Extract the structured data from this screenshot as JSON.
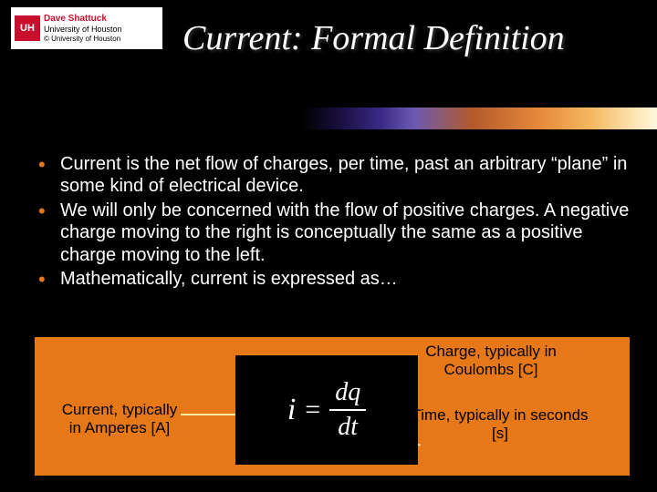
{
  "logo": {
    "mark": "UH",
    "name": "Dave Shattuck",
    "inst": "University of Houston",
    "copy": "© University of Houston"
  },
  "title": "Current: Formal Definition",
  "bullets": [
    "Current is the net flow of charges, per time, past an arbitrary “plane” in some kind of electrical device.",
    "We will only be concerned with the flow of positive charges.  A negative charge moving to the right is conceptually the same as a positive charge moving to the left.",
    "Mathematically, current is expressed as…"
  ],
  "formula": {
    "lhs": "i",
    "eq": "=",
    "num": "dq",
    "den": "dt",
    "annot_current": "Current, typically in Amperes [A]",
    "annot_charge": "Charge, typically in Coulombs [C]",
    "annot_time": "Time, typically in seconds [s]"
  },
  "style": {
    "accent": "#e67817",
    "bg": "#000000",
    "text": "#ffffff",
    "title_fontsize": 38,
    "body_fontsize": 20,
    "annot_fontsize": 17,
    "arrow_color": "#f3e9a0"
  }
}
